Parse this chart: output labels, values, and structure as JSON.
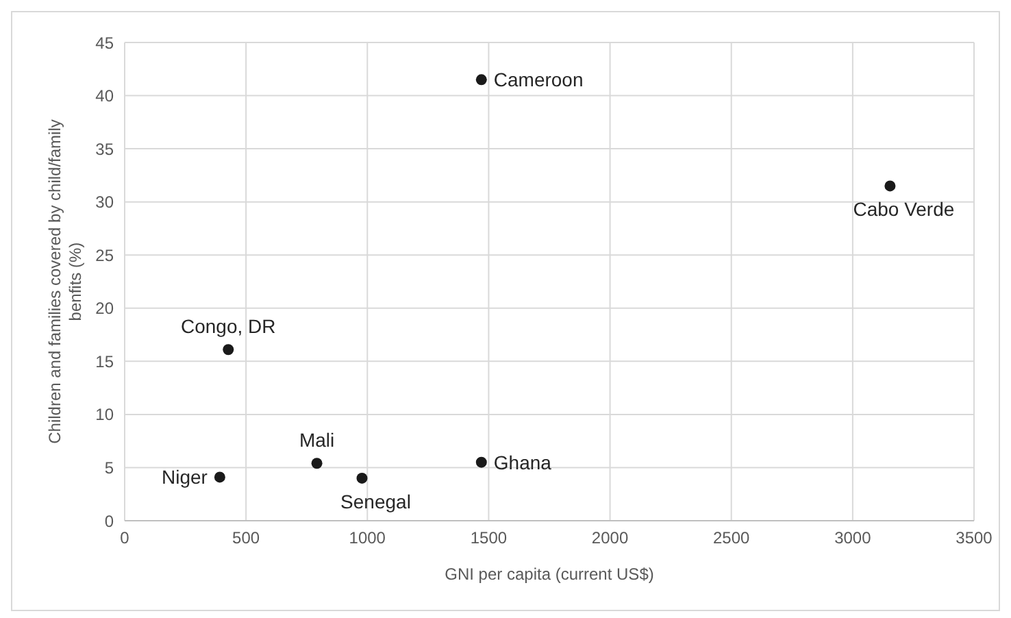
{
  "chart_data": {
    "type": "scatter",
    "xlabel": "GNI per capita (current US$)",
    "ylabel": "Children and families covered by  child/family benfits (%)",
    "x": [
      1470,
      3154,
      427,
      392,
      792,
      978,
      1470
    ],
    "series": [
      {
        "color": "#1a1a1a",
        "values": [
          41.5,
          31.5,
          16.1,
          4.1,
          5.4,
          4.0,
          5.5
        ]
      }
    ],
    "annotations": [
      {
        "text": "Cameroon",
        "x": 1470,
        "y": 41.5
      },
      {
        "text": "Cabo Verde",
        "x": 3154,
        "y": 31.5
      },
      {
        "text": "Congo, DR",
        "x": 427,
        "y": 16.1
      },
      {
        "text": "Niger",
        "x": 392,
        "y": 4.1
      },
      {
        "text": "Mali",
        "x": 792,
        "y": 5.4
      },
      {
        "text": "Senegal",
        "x": 978,
        "y": 4.0
      },
      {
        "text": "Ghana",
        "x": 1470,
        "y": 5.5
      }
    ],
    "xlim": [
      0,
      3500
    ],
    "xticks": [
      0,
      500,
      1000,
      1500,
      2000,
      2500,
      3000,
      3500
    ],
    "ylim": [
      0,
      45
    ],
    "yticks": [
      0,
      5,
      10,
      15,
      20,
      25,
      30,
      35,
      40,
      45
    ],
    "grid": true,
    "marker": "circle",
    "legend": false
  }
}
